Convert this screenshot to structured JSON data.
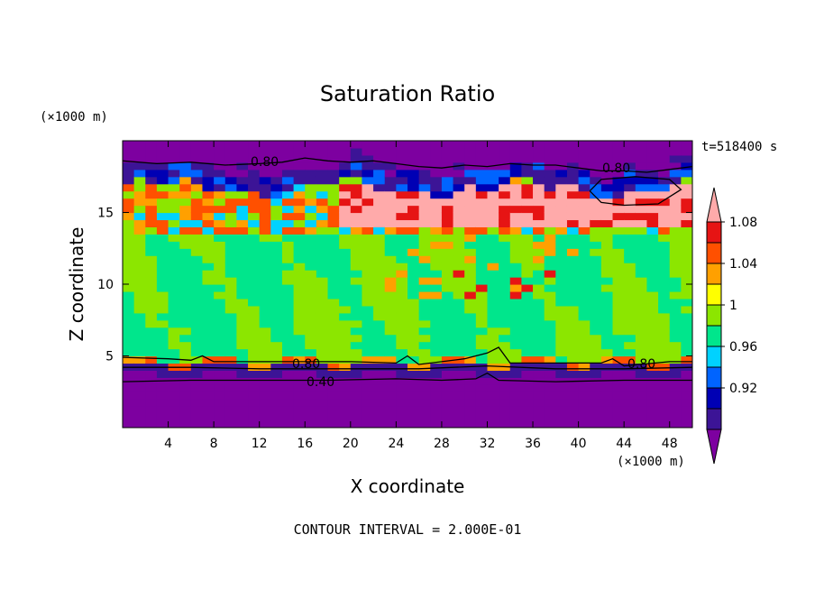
{
  "chart_data": {
    "type": "heatmap",
    "title": "Saturation Ratio",
    "xlabel": "X coordinate",
    "ylabel": "Z coordinate",
    "x_unit": "(×1000 m)",
    "y_unit": "(×1000 m)",
    "time_label": "t=518400 s",
    "footer": "CONTOUR INTERVAL = 2.000E-01",
    "xlim": [
      0,
      50
    ],
    "ylim": [
      0,
      20
    ],
    "x_ticks": [
      4,
      8,
      12,
      16,
      20,
      24,
      28,
      32,
      36,
      40,
      44,
      48
    ],
    "y_ticks": [
      5,
      10,
      15
    ],
    "x_tick_labels": [
      "4",
      "8",
      "12",
      "16",
      "20",
      "24",
      "28",
      "32",
      "36",
      "40",
      "44",
      "48"
    ],
    "y_tick_labels": [
      "5",
      "10",
      "15"
    ],
    "colorbar": {
      "bins": [
        {
          "color": "#7d00a0"
        },
        {
          "color": "#3c1496"
        },
        {
          "color": "#0000b4"
        },
        {
          "color": "#0064ff"
        },
        {
          "color": "#00d2ff"
        },
        {
          "color": "#00e68c"
        },
        {
          "color": "#8ce600"
        },
        {
          "color": "#ffff00"
        },
        {
          "color": "#ffa000"
        },
        {
          "color": "#ff5000"
        },
        {
          "color": "#e61414"
        },
        {
          "color": "#ffaaaa"
        }
      ],
      "labels": [
        "0.92",
        "0.96",
        "1",
        "1.04",
        "1.08"
      ],
      "label_values": [
        0.92,
        0.96,
        1.0,
        1.04,
        1.08
      ]
    },
    "contour_labels": [
      "0.80",
      "0.80",
      "0.80",
      "0.80",
      "0.40"
    ],
    "contours": [
      {
        "level": 0.8,
        "points": [
          [
            0,
            18.6
          ],
          [
            3,
            18.4
          ],
          [
            6,
            18.5
          ],
          [
            9,
            18.3
          ],
          [
            12,
            18.4
          ],
          [
            14,
            18.5
          ],
          [
            16,
            18.8
          ],
          [
            18,
            18.6
          ],
          [
            20,
            18.5
          ],
          [
            22,
            18.6
          ],
          [
            24,
            18.4
          ],
          [
            26,
            18.2
          ],
          [
            28,
            18.1
          ],
          [
            30,
            18.3
          ],
          [
            32,
            18.2
          ],
          [
            34,
            18.4
          ],
          [
            36,
            18.3
          ],
          [
            38,
            18.3
          ],
          [
            40,
            18.1
          ],
          [
            42,
            17.9
          ],
          [
            44,
            17.9
          ],
          [
            46,
            17.8
          ],
          [
            48,
            18.0
          ],
          [
            50,
            18.2
          ]
        ]
      },
      {
        "level": 0.8,
        "points": [
          [
            0,
            4.9
          ],
          [
            4,
            4.8
          ],
          [
            6,
            4.7
          ],
          [
            7,
            5.0
          ],
          [
            8,
            4.6
          ],
          [
            12,
            4.6
          ],
          [
            16,
            4.6
          ],
          [
            20,
            4.6
          ],
          [
            24,
            4.5
          ],
          [
            25,
            5.0
          ],
          [
            26,
            4.4
          ],
          [
            28,
            4.6
          ],
          [
            30,
            4.8
          ],
          [
            32,
            5.2
          ],
          [
            33,
            5.6
          ],
          [
            34,
            4.5
          ],
          [
            38,
            4.5
          ],
          [
            42,
            4.5
          ],
          [
            43,
            4.8
          ],
          [
            44,
            4.3
          ],
          [
            48,
            4.6
          ],
          [
            50,
            4.6
          ]
        ]
      },
      {
        "level": 0.4,
        "points": [
          [
            0,
            3.2
          ],
          [
            6,
            3.3
          ],
          [
            12,
            3.3
          ],
          [
            18,
            3.3
          ],
          [
            24,
            3.4
          ],
          [
            28,
            3.3
          ],
          [
            31,
            3.4
          ],
          [
            32,
            3.8
          ],
          [
            33,
            3.3
          ],
          [
            38,
            3.2
          ],
          [
            44,
            3.3
          ],
          [
            50,
            3.3
          ]
        ]
      },
      {
        "level": 0.6,
        "points": [
          [
            0,
            4.2
          ],
          [
            6,
            4.2
          ],
          [
            12,
            4.1
          ],
          [
            20,
            4.1
          ],
          [
            26,
            4.1
          ],
          [
            32,
            4.3
          ],
          [
            38,
            4.1
          ],
          [
            44,
            4.1
          ],
          [
            50,
            4.2
          ]
        ]
      },
      {
        "level": 1.0,
        "points": [
          [
            41,
            16.5
          ],
          [
            42,
            17.3
          ],
          [
            45,
            17.5
          ],
          [
            48,
            17.3
          ],
          [
            49,
            16.6
          ],
          [
            47,
            15.6
          ],
          [
            44,
            15.5
          ],
          [
            42,
            15.7
          ],
          [
            41,
            16.5
          ]
        ]
      }
    ]
  }
}
